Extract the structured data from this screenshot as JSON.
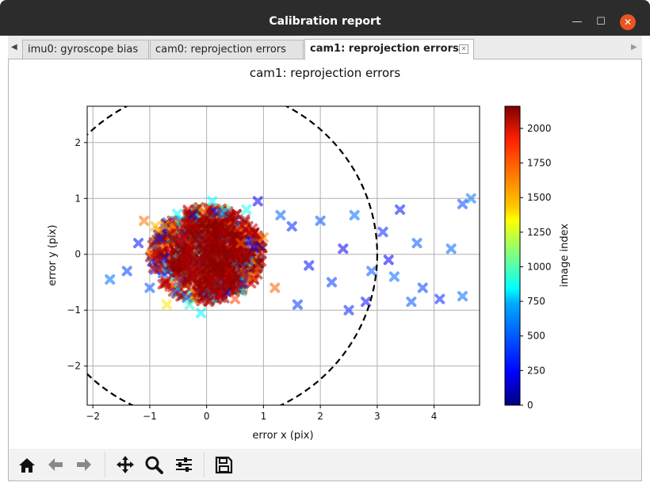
{
  "window": {
    "title": "Calibration report"
  },
  "tabs": [
    {
      "label": "imu0: gyroscope bias"
    },
    {
      "label": "cam0: reprojection errors"
    },
    {
      "label": "cam1: reprojection errors"
    }
  ],
  "toolbar": {
    "items": [
      "home-icon",
      "back-arrow-icon",
      "forward-arrow-icon",
      "pan-icon",
      "zoom-icon",
      "configure-subplots-icon",
      "save-icon"
    ]
  },
  "chart_data": {
    "type": "scatter",
    "title": "cam1: reprojection errors",
    "xlabel": "error x (pix)",
    "ylabel": "error y (pix)",
    "xlim": [
      -2.1,
      4.8
    ],
    "ylim": [
      -2.7,
      2.65
    ],
    "xticks": [
      "−2",
      "−1",
      "0",
      "1",
      "2",
      "3",
      "4"
    ],
    "yticks": [
      "−2",
      "−1",
      "0",
      "1",
      "2"
    ],
    "grid": true,
    "marker": "x (filled)",
    "colorbar": {
      "label": "image index",
      "ticks": [
        "0",
        "250",
        "500",
        "750",
        "1000",
        "1250",
        "1500",
        "1750",
        "2000"
      ],
      "range": [
        0,
        2160
      ],
      "colormap": "jet"
    },
    "circle": {
      "center": [
        0,
        0
      ],
      "radius": 3.0,
      "style": "dashed",
      "color": "#000000"
    },
    "points": [
      {
        "x": 0.0,
        "y": 0.0,
        "c": 2100
      },
      {
        "x": 0.3,
        "y": 0.4,
        "c": 2050
      },
      {
        "x": -0.4,
        "y": 0.3,
        "c": 2000
      },
      {
        "x": -0.5,
        "y": -0.4,
        "c": 1950
      },
      {
        "x": 0.4,
        "y": -0.3,
        "c": 2000
      },
      {
        "x": 0.6,
        "y": 0.2,
        "c": 1700
      },
      {
        "x": 0.8,
        "y": -0.4,
        "c": 1650
      },
      {
        "x": 1.0,
        "y": 0.3,
        "c": 1600
      },
      {
        "x": -0.9,
        "y": 0.5,
        "c": 1500
      },
      {
        "x": -1.1,
        "y": 0.6,
        "c": 1650
      },
      {
        "x": -0.7,
        "y": -0.9,
        "c": 1400
      },
      {
        "x": 1.2,
        "y": -0.6,
        "c": 1700
      },
      {
        "x": 0.5,
        "y": -0.8,
        "c": 1750
      },
      {
        "x": -0.3,
        "y": -0.9,
        "c": 900
      },
      {
        "x": 0.1,
        "y": 0.95,
        "c": 820
      },
      {
        "x": 0.7,
        "y": 0.8,
        "c": 850
      },
      {
        "x": -1.7,
        "y": -0.45,
        "c": 500
      },
      {
        "x": -1.4,
        "y": -0.3,
        "c": 400
      },
      {
        "x": -1.2,
        "y": 0.2,
        "c": 300
      },
      {
        "x": -1.0,
        "y": -0.6,
        "c": 450
      },
      {
        "x": 1.5,
        "y": 0.5,
        "c": 350
      },
      {
        "x": 1.8,
        "y": -0.2,
        "c": 300
      },
      {
        "x": 2.0,
        "y": 0.6,
        "c": 450
      },
      {
        "x": 2.2,
        "y": -0.5,
        "c": 400
      },
      {
        "x": 2.4,
        "y": 0.1,
        "c": 250
      },
      {
        "x": 2.6,
        "y": 0.7,
        "c": 500
      },
      {
        "x": 2.9,
        "y": -0.3,
        "c": 450
      },
      {
        "x": 3.1,
        "y": 0.4,
        "c": 350
      },
      {
        "x": 3.3,
        "y": -0.4,
        "c": 500
      },
      {
        "x": 3.4,
        "y": 0.8,
        "c": 300
      },
      {
        "x": 3.7,
        "y": 0.2,
        "c": 450
      },
      {
        "x": 3.8,
        "y": -0.6,
        "c": 400
      },
      {
        "x": 4.1,
        "y": -0.8,
        "c": 350
      },
      {
        "x": 4.3,
        "y": 0.1,
        "c": 480
      },
      {
        "x": 4.5,
        "y": 0.9,
        "c": 420
      },
      {
        "x": 4.65,
        "y": 1.0,
        "c": 520
      },
      {
        "x": 4.5,
        "y": -0.75,
        "c": 500
      },
      {
        "x": 3.6,
        "y": -0.85,
        "c": 450
      },
      {
        "x": 1.6,
        "y": -0.9,
        "c": 380
      },
      {
        "x": 2.8,
        "y": -0.85,
        "c": 300
      },
      {
        "x": 0.9,
        "y": 0.95,
        "c": 260
      },
      {
        "x": -0.1,
        "y": -1.05,
        "c": 780
      },
      {
        "x": 2.5,
        "y": -1.0,
        "c": 350
      },
      {
        "x": 3.2,
        "y": -0.1,
        "c": 260
      },
      {
        "x": 1.3,
        "y": 0.7,
        "c": 480
      }
    ]
  }
}
